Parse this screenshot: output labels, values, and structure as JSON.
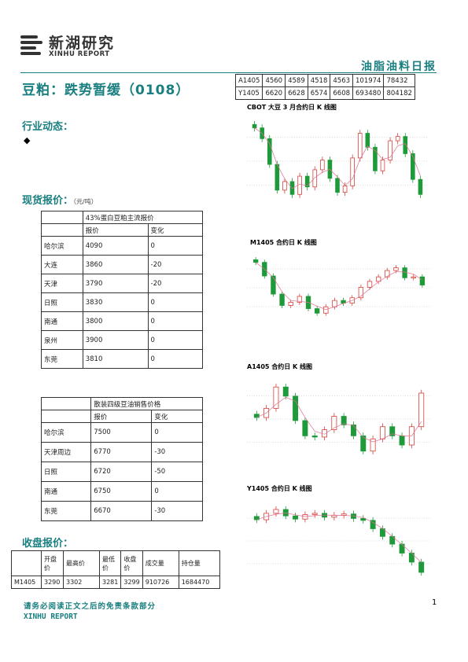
{
  "brand": {
    "name_cn": "新湖研究",
    "name_en": "XINHU REPORT"
  },
  "report_type": "油脂油料日报",
  "title": "豆粕：跌势暂缓（0108）",
  "sections": {
    "industry": "行业动态：",
    "industry_bullet": "◆",
    "spot": "现货报价：",
    "spot_unit": "（元/吨）",
    "close": "收盘报价："
  },
  "top_table": [
    [
      "A1405",
      "4560",
      "4589",
      "4518",
      "4563",
      "101974",
      "78432"
    ],
    [
      "Y1405",
      "6620",
      "6628",
      "6574",
      "6608",
      "693480",
      "804182"
    ]
  ],
  "spot_soymeal": {
    "title": "43%蛋白豆粕主流报价",
    "col_price": "报价",
    "col_change": "变化",
    "rows": [
      [
        "哈尔滨",
        "4090",
        "0"
      ],
      [
        "大连",
        "3860",
        "-20"
      ],
      [
        "天津",
        "3790",
        "-20"
      ],
      [
        "日照",
        "3830",
        "0"
      ],
      [
        "南通",
        "3800",
        "0"
      ],
      [
        "泉州",
        "3900",
        "0"
      ],
      [
        "东莞",
        "3810",
        "0"
      ]
    ]
  },
  "spot_oil": {
    "title": "散装四级豆油销售价格",
    "col_price": "报价",
    "col_change": "变化",
    "rows": [
      [
        "哈尔滨",
        "7500",
        "0"
      ],
      [
        "天津周边",
        "6770",
        "-30"
      ],
      [
        "日照",
        "6720",
        "-50"
      ],
      [
        "南通",
        "6750",
        "0"
      ],
      [
        "东莞",
        "6670",
        "-30"
      ]
    ]
  },
  "close_table": {
    "headers": [
      "",
      "开盘价",
      "最高价",
      "最低价",
      "收盘价",
      "成交量",
      "持仓量"
    ],
    "rows": [
      [
        "M1405",
        "3290",
        "3302",
        "3281",
        "3299",
        "910726",
        "1684470"
      ]
    ]
  },
  "charts": {
    "cbot": "CBOT 大豆 3 月合约日 K 线图",
    "m1405": "M1405 合约日 K 线图",
    "a1405": "A1405 合约日 K 线图",
    "y1405": "Y1405 合约日 K 线图"
  },
  "chart_data": [
    {
      "type": "line",
      "title": "CBOT 大豆 3 月合约日 K 线图",
      "series": [
        {
          "values": [
            1330,
            1320,
            1296,
            1272,
            1280,
            1268,
            1285,
            1275,
            1291,
            1300,
            1283,
            1270,
            1276,
            1302,
            1325,
            1312,
            1290,
            1300,
            1318,
            1322,
            1306,
            1282,
            1268
          ]
        }
      ]
    },
    {
      "type": "line",
      "title": "M1405 合约日 K 线图",
      "series": [
        {
          "values": [
            3350,
            3320,
            3280,
            3255,
            3262,
            3275,
            3248,
            3238,
            3252,
            3266,
            3260,
            3272,
            3295,
            3308,
            3318,
            3332,
            3338,
            3316,
            3318,
            3300
          ]
        }
      ]
    },
    {
      "type": "line",
      "title": "A1405 合约日 K 线图",
      "series": [
        {
          "values": [
            4590,
            4605,
            4640,
            4625,
            4585,
            4560,
            4558,
            4570,
            4592,
            4578,
            4560,
            4535,
            4555,
            4575,
            4560,
            4545,
            4575,
            4630
          ]
        }
      ]
    },
    {
      "type": "line",
      "title": "Y1405 合约日 K 线图",
      "series": [
        {
          "values": [
            7050,
            7100,
            7130,
            7080,
            7055,
            7090,
            7100,
            7070,
            7085,
            7095,
            7060,
            7045,
            6980,
            6920,
            6860,
            6790,
            6720,
            6640
          ]
        }
      ]
    }
  ],
  "colors": {
    "accent": "#1a7f80",
    "up": "#d9413a",
    "down": "#1f9a3a"
  },
  "footer": {
    "disclaimer": "请务必阅读正文之后的免责条款部分",
    "brand": "XINHU REPORT",
    "page": "1"
  }
}
